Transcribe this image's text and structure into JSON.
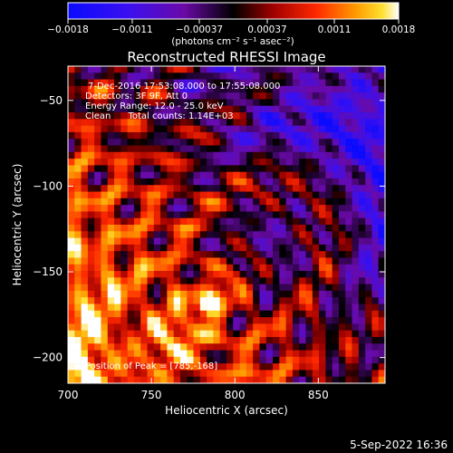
{
  "chart_data": {
    "type": "heatmap",
    "title": "Reconstructed RHESSI Image",
    "xlabel": "Heliocentric X (arcsec)",
    "ylabel": "Heliocentric Y (arcsec)",
    "xlim": [
      700,
      890
    ],
    "ylim": [
      -215,
      -30
    ],
    "x_ticks": [
      700,
      750,
      800,
      850
    ],
    "x_tick_labels": [
      "700",
      "750",
      "800",
      "850"
    ],
    "y_ticks": [
      -50,
      -100,
      -150,
      -200
    ],
    "y_tick_labels": [
      "−50",
      "−100",
      "−150",
      "−200"
    ],
    "colorbar": {
      "min": -0.0018,
      "max": 0.0018,
      "ticks": [
        -0.0018,
        -0.0011,
        -0.00037,
        0.00037,
        0.0011,
        0.0018
      ],
      "tick_labels": [
        "−0.0018",
        "−0.0011",
        "−0.00037",
        "0.00037",
        "0.0011",
        "0.0018"
      ],
      "unit_label": "(photons cm⁻² s⁻¹ asec⁻²)"
    },
    "annotations": {
      "time_range": "7-Dec-2016 17:53:08.000 to 17:55:08.000",
      "detectors": "Detectors: 3F 9F, Att 0",
      "energy_range": "Energy Range: 12.0 - 25.0 keV",
      "clean_counts": "Clean      Total counts: 1.14E+03",
      "peak": "Position of Peak = [785,-168]"
    },
    "peak_position": [
      785,
      -168
    ],
    "grid": false
  },
  "footer": {
    "date": "5-Sep-2022 16:36"
  },
  "colors": {
    "background": "#000000",
    "text": "#ffffff"
  }
}
